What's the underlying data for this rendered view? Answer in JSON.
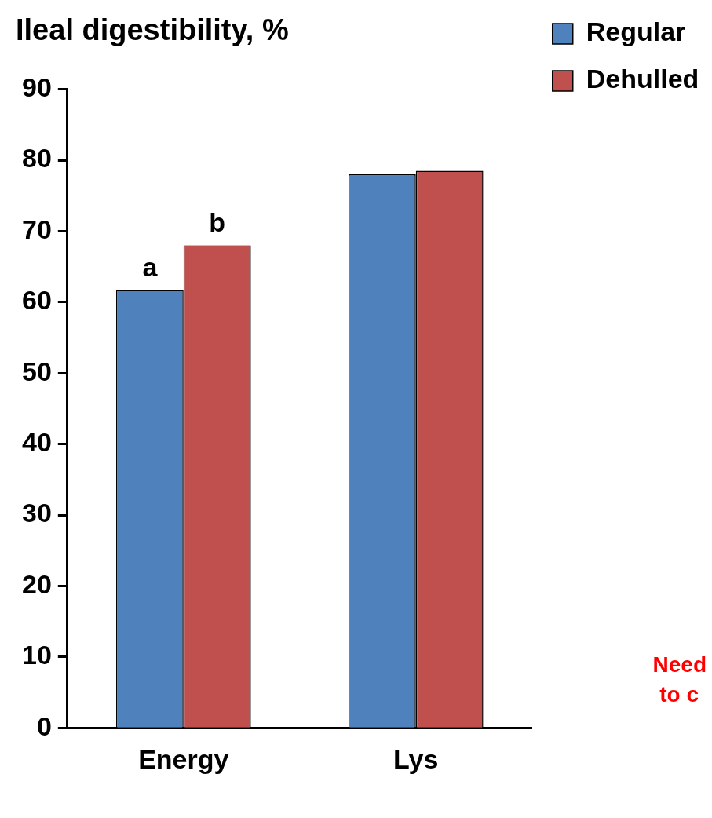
{
  "chart_data": {
    "type": "bar",
    "title": "Ileal digestibility, %",
    "categories": [
      "Energy",
      "Lys"
    ],
    "series": [
      {
        "name": "Regular",
        "color": "#4f81bd",
        "values": [
          61.7,
          78
        ]
      },
      {
        "name": "Dehulled",
        "color": "#c0504d",
        "values": [
          68,
          78.5
        ]
      }
    ],
    "ylim": [
      0,
      90
    ],
    "yticks": [
      0,
      10,
      20,
      30,
      40,
      50,
      60,
      70,
      80,
      90
    ],
    "grid": false,
    "legend": "top right",
    "annotations": [
      "a",
      "b",
      "Need",
      "to c"
    ]
  }
}
